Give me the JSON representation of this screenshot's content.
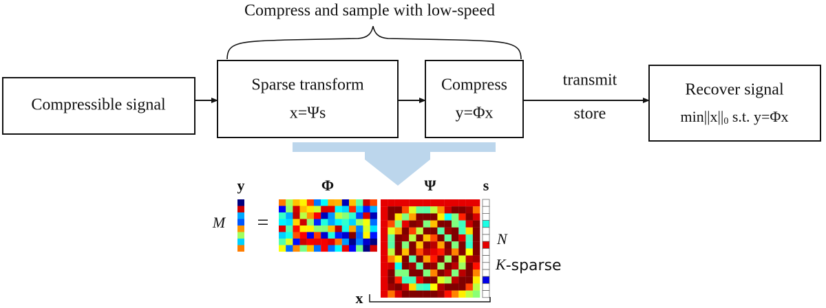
{
  "header": {
    "title": "Compress and sample with low-speed"
  },
  "nodes": [
    {
      "label": "Compressible signal"
    },
    {
      "label": "Sparse transform",
      "formula": "x=Ψs"
    },
    {
      "label": "Compress",
      "formula": "y=Φx"
    },
    {
      "label": "Recover signal",
      "formula_parts": [
        "min||x||",
        "0",
        " s.t. y=Φx"
      ]
    }
  ],
  "edge_labels": [
    "transmit",
    "store"
  ],
  "matrix": {
    "y": "y",
    "M": "M",
    "equals": "=",
    "phi": "Φ",
    "psi": "Ψ",
    "s": "s",
    "N": "N",
    "K": "K",
    "sparse": "-sparse",
    "x": "x"
  }
}
